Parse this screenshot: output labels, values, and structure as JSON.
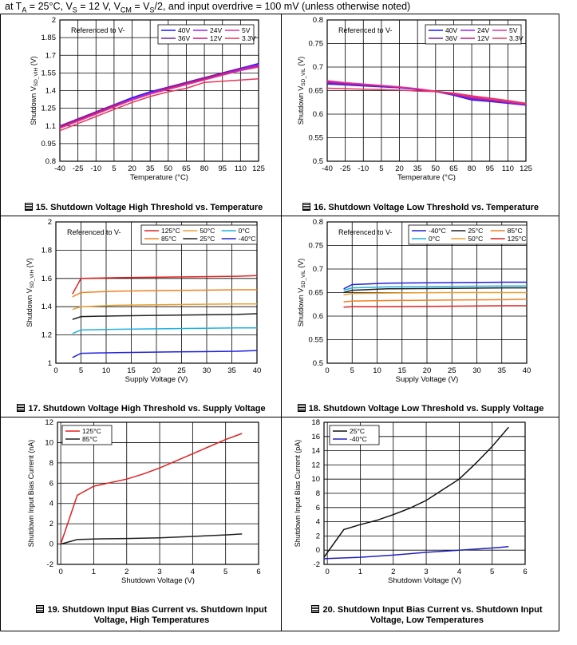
{
  "header": {
    "pre": "at T",
    "s1": "A",
    "t1": " = 25°C, V",
    "s2": "S",
    "t2": " = 12 V, V",
    "s3": "CM",
    "t3": " = V",
    "s4": "S",
    "t4": "/2, and input overdrive = 100 mV (unless otherwise noted)"
  },
  "colors": {
    "frame": "#000000",
    "grid": "#000000"
  },
  "chart_data": [
    {
      "id": "fig15",
      "type": "line",
      "caption_num": "15",
      "caption": "Shutdown Voltage High Threshold vs. Temperature",
      "annotation": "Referenced to V-",
      "xlabel": "Temperature (°C)",
      "ylabel_main": "Shutdown V",
      "ylabel_sub": "SD_VIH",
      "ylabel_tail": " (V)",
      "x": [
        -40,
        -25,
        -10,
        5,
        20,
        35,
        50,
        65,
        80,
        95,
        110,
        125
      ],
      "xlim": [
        -40,
        125
      ],
      "ylim": [
        0.8,
        2
      ],
      "xticks": [
        "-40",
        "-25",
        "-10",
        "5",
        "20",
        "35",
        "50",
        "65",
        "80",
        "95",
        "110",
        "125"
      ],
      "yticks": [
        "0.8",
        "0.95",
        "1.1",
        "1.25",
        "1.4",
        "1.55",
        "1.7",
        "1.85",
        "2"
      ],
      "series": [
        {
          "name": "40V",
          "color": "#1a1aff",
          "values": [
            1.1,
            1.16,
            1.22,
            1.28,
            1.34,
            1.39,
            1.43,
            1.47,
            1.51,
            1.55,
            1.59,
            1.63
          ]
        },
        {
          "name": "36V",
          "color": "#7a1fa0",
          "values": [
            1.1,
            1.16,
            1.22,
            1.28,
            1.33,
            1.38,
            1.43,
            1.47,
            1.51,
            1.55,
            1.59,
            1.62
          ]
        },
        {
          "name": "24V",
          "color": "#a020f0",
          "values": [
            1.09,
            1.15,
            1.21,
            1.27,
            1.33,
            1.38,
            1.42,
            1.46,
            1.5,
            1.54,
            1.58,
            1.62
          ]
        },
        {
          "name": "12V",
          "color": "#c71585",
          "values": [
            1.09,
            1.15,
            1.21,
            1.27,
            1.32,
            1.37,
            1.42,
            1.46,
            1.5,
            1.54,
            1.57,
            1.61
          ]
        },
        {
          "name": "5V",
          "color": "#e0339a",
          "values": [
            1.08,
            1.14,
            1.2,
            1.26,
            1.32,
            1.37,
            1.41,
            1.45,
            1.49,
            1.53,
            1.57,
            1.6
          ]
        },
        {
          "name": "3.3V",
          "color": "#e8365c",
          "values": [
            1.06,
            1.12,
            1.18,
            1.24,
            1.3,
            1.35,
            1.39,
            1.42,
            1.47,
            1.48,
            1.49,
            1.5
          ]
        }
      ],
      "legend_order": [
        "40V",
        "24V",
        "5V",
        "36V",
        "12V",
        "3.3V"
      ],
      "legend_cols": 3
    },
    {
      "id": "fig16",
      "type": "line",
      "caption_num": "16",
      "caption": "Shutdown Voltage Low Threshold vs. Temperature",
      "annotation": "Referenced to V-",
      "xlabel": "Temperature (°C)",
      "ylabel_main": "Shutdown V",
      "ylabel_sub": "SD_VIL",
      "ylabel_tail": " (V)",
      "x": [
        -40,
        -25,
        -10,
        5,
        20,
        35,
        50,
        65,
        80,
        95,
        110,
        125
      ],
      "xlim": [
        -40,
        125
      ],
      "ylim": [
        0.5,
        0.8
      ],
      "xticks": [
        "-40",
        "-25",
        "-10",
        "5",
        "20",
        "35",
        "50",
        "65",
        "80",
        "95",
        "110",
        "125"
      ],
      "yticks": [
        "0.5",
        "0.55",
        "0.6",
        "0.65",
        "0.7",
        "0.75",
        "0.8"
      ],
      "series": [
        {
          "name": "40V",
          "color": "#1a1aff",
          "values": [
            0.664,
            0.662,
            0.66,
            0.658,
            0.656,
            0.652,
            0.648,
            0.64,
            0.63,
            0.627,
            0.623,
            0.619
          ]
        },
        {
          "name": "36V",
          "color": "#7a1fa0",
          "values": [
            0.666,
            0.663,
            0.661,
            0.659,
            0.657,
            0.653,
            0.648,
            0.641,
            0.632,
            0.628,
            0.624,
            0.62
          ]
        },
        {
          "name": "24V",
          "color": "#a020f0",
          "values": [
            0.668,
            0.665,
            0.662,
            0.66,
            0.657,
            0.653,
            0.648,
            0.642,
            0.634,
            0.63,
            0.625,
            0.62
          ]
        },
        {
          "name": "12V",
          "color": "#c71585",
          "values": [
            0.669,
            0.666,
            0.663,
            0.66,
            0.657,
            0.653,
            0.648,
            0.643,
            0.636,
            0.631,
            0.626,
            0.621
          ]
        },
        {
          "name": "5V",
          "color": "#e0339a",
          "values": [
            0.671,
            0.667,
            0.664,
            0.661,
            0.658,
            0.654,
            0.649,
            0.644,
            0.637,
            0.632,
            0.627,
            0.622
          ]
        },
        {
          "name": "3.3V",
          "color": "#e8365c",
          "values": [
            0.655,
            0.654,
            0.653,
            0.652,
            0.651,
            0.649,
            0.648,
            0.645,
            0.639,
            0.634,
            0.629,
            0.623
          ]
        }
      ],
      "legend_order": [
        "40V",
        "24V",
        "5V",
        "36V",
        "12V",
        "3.3V"
      ],
      "legend_cols": 3
    },
    {
      "id": "fig17",
      "type": "line",
      "caption_num": "17",
      "caption": "Shutdown Voltage High Threshold vs. Supply Voltage",
      "annotation": "Referenced to V-",
      "xlabel": "Supply Voltage (V)",
      "ylabel_main": "Shutdown V",
      "ylabel_sub": "SD_VIH",
      "ylabel_tail": " (V)",
      "xlim": [
        0,
        40
      ],
      "ylim": [
        1,
        2
      ],
      "xticks": [
        "0",
        "5",
        "10",
        "15",
        "20",
        "25",
        "30",
        "35",
        "40"
      ],
      "yticks": [
        "1",
        "1.2",
        "1.4",
        "1.6",
        "1.8",
        "2"
      ],
      "series": [
        {
          "name": "125°C",
          "color": "#e02020",
          "x": [
            3.3,
            5,
            12,
            24,
            36,
            40
          ],
          "values": [
            1.49,
            1.6,
            1.605,
            1.61,
            1.615,
            1.62
          ]
        },
        {
          "name": "85°C",
          "color": "#f08020",
          "x": [
            3.3,
            5,
            12,
            24,
            36,
            40
          ],
          "values": [
            1.47,
            1.5,
            1.51,
            1.515,
            1.52,
            1.52
          ]
        },
        {
          "name": "50°C",
          "color": "#e8a030",
          "x": [
            3.3,
            5,
            12,
            24,
            36,
            40
          ],
          "values": [
            1.38,
            1.4,
            1.41,
            1.415,
            1.42,
            1.42
          ]
        },
        {
          "name": "25°C",
          "color": "#202020",
          "x": [
            3.3,
            5,
            12,
            24,
            36,
            40
          ],
          "values": [
            1.31,
            1.33,
            1.335,
            1.34,
            1.345,
            1.35
          ]
        },
        {
          "name": "0°C",
          "color": "#20b0e0",
          "x": [
            3.3,
            5,
            12,
            24,
            36,
            40
          ],
          "values": [
            1.21,
            1.235,
            1.24,
            1.245,
            1.25,
            1.25
          ]
        },
        {
          "name": "-40°C",
          "color": "#2020e0",
          "x": [
            3.3,
            5,
            12,
            24,
            36,
            40
          ],
          "values": [
            1.04,
            1.07,
            1.075,
            1.08,
            1.085,
            1.09
          ]
        }
      ],
      "legend_order": [
        "125°C",
        "50°C",
        "0°C",
        "85°C",
        "25°C",
        "-40°C"
      ],
      "legend_cols": 3
    },
    {
      "id": "fig18",
      "type": "line",
      "caption_num": "18",
      "caption": "Shutdown Voltage Low Threshold vs. Supply Voltage",
      "annotation": "Referenced to V-",
      "xlabel": "Supply Voltage (V)",
      "ylabel_main": "Shutdown V",
      "ylabel_sub": "SD_VIL",
      "ylabel_tail": " (V)",
      "xlim": [
        0,
        40
      ],
      "ylim": [
        0.5,
        0.8
      ],
      "xticks": [
        "0",
        "5",
        "10",
        "15",
        "20",
        "25",
        "30",
        "35",
        "40"
      ],
      "yticks": [
        "0.5",
        "0.55",
        "0.6",
        "0.65",
        "0.7",
        "0.75",
        "0.8"
      ],
      "series": [
        {
          "name": "-40°C",
          "color": "#2020e0",
          "x": [
            3.3,
            5,
            12,
            24,
            36,
            40
          ],
          "values": [
            0.658,
            0.667,
            0.67,
            0.671,
            0.672,
            0.672
          ]
        },
        {
          "name": "0°C",
          "color": "#20b0e0",
          "x": [
            3.3,
            5,
            12,
            24,
            36,
            40
          ],
          "values": [
            0.655,
            0.66,
            0.662,
            0.663,
            0.664,
            0.664
          ]
        },
        {
          "name": "25°C",
          "color": "#202020",
          "x": [
            3.3,
            5,
            12,
            24,
            36,
            40
          ],
          "values": [
            0.65,
            0.655,
            0.658,
            0.659,
            0.66,
            0.66
          ]
        },
        {
          "name": "50°C",
          "color": "#e8a030",
          "x": [
            3.3,
            5,
            12,
            24,
            36,
            40
          ],
          "values": [
            0.645,
            0.648,
            0.649,
            0.65,
            0.65,
            0.65
          ]
        },
        {
          "name": "85°C",
          "color": "#f08020",
          "x": [
            3.3,
            5,
            12,
            24,
            36,
            40
          ],
          "values": [
            0.63,
            0.632,
            0.633,
            0.634,
            0.635,
            0.636
          ]
        },
        {
          "name": "125°C",
          "color": "#e02020",
          "x": [
            3.3,
            5,
            12,
            24,
            36,
            40
          ],
          "values": [
            0.619,
            0.62,
            0.62,
            0.621,
            0.622,
            0.622
          ]
        }
      ],
      "legend_order": [
        "-40°C",
        "25°C",
        "85°C",
        "0°C",
        "50°C",
        "125°C"
      ],
      "legend_cols": 3
    },
    {
      "id": "fig19",
      "type": "line",
      "caption_num": "19",
      "caption": "Shutdown Input Bias Current vs. Shutdown Input Voltage, High Temperatures",
      "annotation": "",
      "xlabel": "Shutdown Voltage (V)",
      "ylabel_main": "Shutdown Input Bias Current (nA)",
      "ylabel_sub": "",
      "ylabel_tail": "",
      "xlim": [
        -0.1,
        6
      ],
      "ylim": [
        -2,
        12
      ],
      "xticks": [
        "0",
        "1",
        "2",
        "3",
        "4",
        "5",
        "6"
      ],
      "xtick_values": [
        0,
        1,
        2,
        3,
        4,
        5,
        6
      ],
      "yticks": [
        "-2",
        "0",
        "2",
        "4",
        "6",
        "8",
        "10",
        "12"
      ],
      "series": [
        {
          "name": "125°C",
          "color": "#e02020",
          "x": [
            0,
            0.5,
            1,
            2,
            2.5,
            3,
            3.5,
            4,
            4.5,
            5,
            5.5
          ],
          "values": [
            0,
            4.8,
            5.7,
            6.4,
            6.9,
            7.5,
            8.2,
            8.9,
            9.6,
            10.3,
            10.9
          ]
        },
        {
          "name": "85°C",
          "color": "#202020",
          "x": [
            0,
            0.5,
            1,
            2,
            3,
            4,
            5,
            5.5
          ],
          "values": [
            0,
            0.45,
            0.5,
            0.55,
            0.62,
            0.75,
            0.9,
            1.0
          ]
        }
      ],
      "legend_order": [
        "125°C",
        "85°C"
      ],
      "legend_cols": 1
    },
    {
      "id": "fig20",
      "type": "line",
      "caption_num": "20",
      "caption": "Shutdown Input Bias Current vs. Shutdown Input Voltage, Low Temperatures",
      "annotation": "",
      "xlabel": "Shutdown Voltage (V)",
      "ylabel_main": "Shutdown Input Bias Current (pA)",
      "ylabel_sub": "",
      "ylabel_tail": "",
      "xlim": [
        -0.1,
        6
      ],
      "ylim": [
        -2,
        18
      ],
      "xticks": [
        "0",
        "1",
        "2",
        "3",
        "4",
        "5",
        "6"
      ],
      "xtick_values": [
        0,
        1,
        2,
        3,
        4,
        5,
        6
      ],
      "yticks": [
        "-2",
        "0",
        "2",
        "4",
        "6",
        "8",
        "10",
        "12",
        "14",
        "16",
        "18"
      ],
      "series": [
        {
          "name": "25°C",
          "color": "#101010",
          "x": [
            -0.1,
            0.5,
            1,
            1.5,
            2,
            2.5,
            3,
            3.5,
            4,
            4.5,
            5,
            5.5
          ],
          "values": [
            -1,
            2.9,
            3.6,
            4.2,
            5.0,
            5.9,
            7.0,
            8.5,
            10.0,
            12.2,
            14.6,
            17.3
          ]
        },
        {
          "name": "-40°C",
          "color": "#2020c0",
          "x": [
            -0.1,
            1,
            2,
            3,
            4,
            5,
            5.5
          ],
          "values": [
            -1.2,
            -1.0,
            -0.7,
            -0.3,
            0,
            0.3,
            0.5
          ]
        }
      ],
      "legend_order": [
        "25°C",
        "-40°C"
      ],
      "legend_cols": 1
    }
  ]
}
